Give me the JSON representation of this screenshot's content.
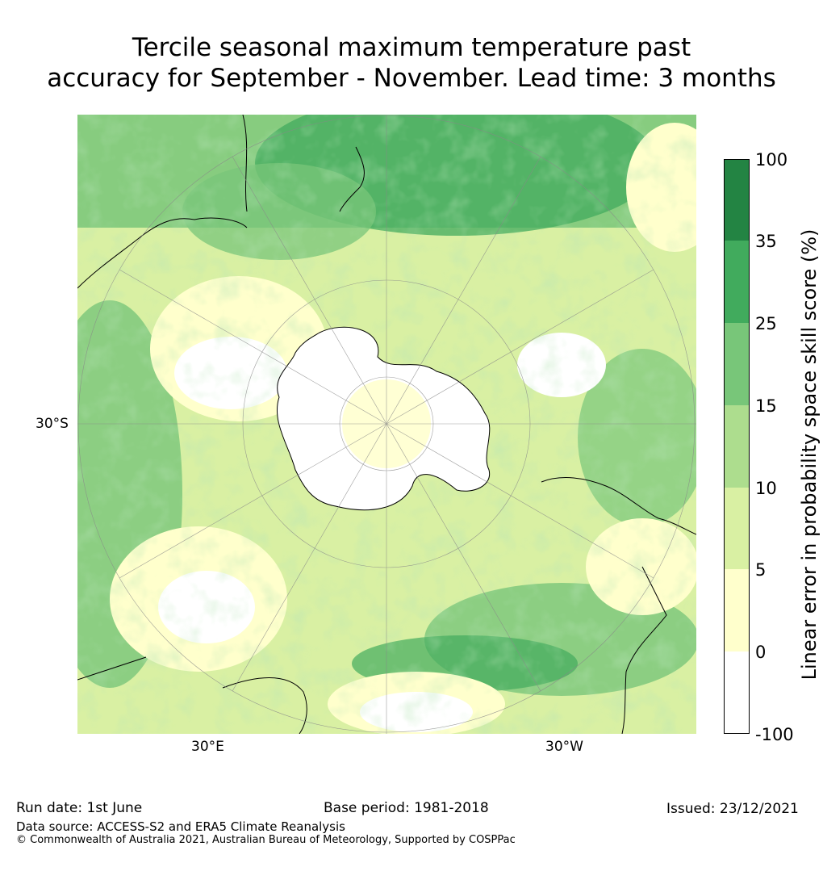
{
  "title": {
    "line1": "Tercile seasonal maximum temperature past",
    "line2": "accuracy for September - November. Lead time: 3 months"
  },
  "map": {
    "lat_label": "30°S",
    "lon_labels": [
      "30°E",
      "30°W"
    ]
  },
  "colorbar": {
    "label": "Linear error in probability space skill score (%)",
    "ticks": [
      "100",
      "35",
      "25",
      "15",
      "10",
      "5",
      "0",
      "-100"
    ],
    "colors": [
      "#238443",
      "#41ab5d",
      "#78c679",
      "#addd8e",
      "#d9f0a3",
      "#ffffcc",
      "#ffffff"
    ]
  },
  "footer": {
    "run_date": "Run date: 1st June",
    "base_period": "Base period: 1981-2018",
    "issued": "Issued: 23/12/2021",
    "data_source": "Data source: ACCESS-S2 and ERA5 Climate Reanalysis",
    "copyright": "© Commonwealth of Australia 2021, Australian Bureau of Meteorology, Supported by COSPPac"
  }
}
